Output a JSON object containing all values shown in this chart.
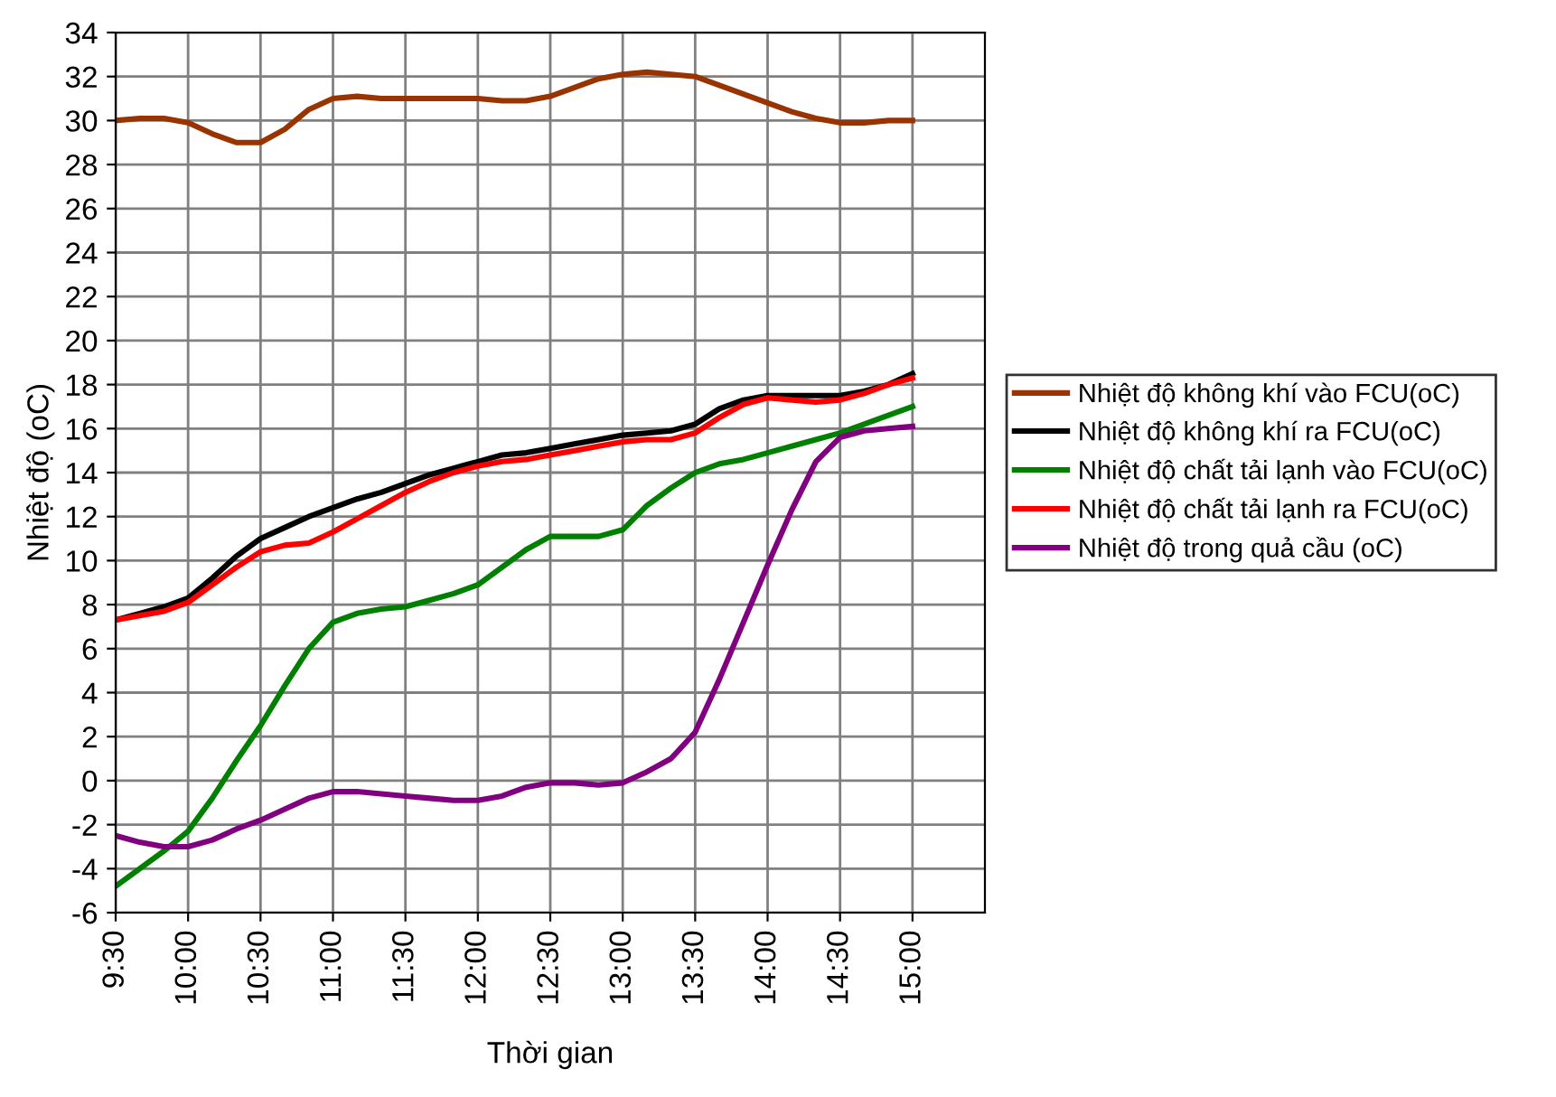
{
  "chart_data": {
    "type": "line",
    "xlabel": "Thời gian",
    "ylabel": "Nhiệt độ (oC)",
    "x": [
      9.5,
      9.6667,
      9.8333,
      10,
      10.1667,
      10.3333,
      10.5,
      10.6667,
      10.8333,
      11,
      11.1667,
      11.3333,
      11.5,
      11.6667,
      11.8333,
      12,
      12.1667,
      12.3333,
      12.5,
      12.6667,
      12.8333,
      13,
      13.1667,
      13.3333,
      13.5,
      13.6667,
      13.8333,
      14,
      14.1667,
      14.3333,
      14.5,
      14.6667,
      14.8333,
      15
    ],
    "series": [
      {
        "name": "Nhiệt độ không khí vào FCU(oC)",
        "color": "#993300",
        "values": [
          30.0,
          30.1,
          30.1,
          29.9,
          29.4,
          29.0,
          29.0,
          29.6,
          30.5,
          31.0,
          31.1,
          31.0,
          31.0,
          31.0,
          31.0,
          31.0,
          30.9,
          30.9,
          31.1,
          31.5,
          31.9,
          32.1,
          32.2,
          32.1,
          32.0,
          31.6,
          31.2,
          30.8,
          30.4,
          30.1,
          29.9,
          29.9,
          30.0,
          30.0
        ]
      },
      {
        "name": "Nhiệt độ không khí ra FCU(oC)",
        "color": "#000000",
        "values": [
          7.3,
          7.6,
          7.9,
          8.3,
          9.2,
          10.2,
          11.0,
          11.5,
          12.0,
          12.4,
          12.8,
          13.1,
          13.5,
          13.9,
          14.2,
          14.5,
          14.8,
          14.9,
          15.1,
          15.3,
          15.5,
          15.7,
          15.8,
          15.9,
          16.2,
          16.9,
          17.3,
          17.5,
          17.5,
          17.5,
          17.5,
          17.7,
          18.0,
          18.5
        ]
      },
      {
        "name": "Nhiệt độ chất tải lạnh vào FCU(oC)",
        "color": "#008000",
        "values": [
          -4.8,
          -4.0,
          -3.2,
          -2.3,
          -0.8,
          0.9,
          2.5,
          4.3,
          6.0,
          7.2,
          7.6,
          7.8,
          7.9,
          8.2,
          8.5,
          8.9,
          9.7,
          10.5,
          11.1,
          11.1,
          11.1,
          11.4,
          12.5,
          13.3,
          14.0,
          14.4,
          14.6,
          14.9,
          15.2,
          15.5,
          15.8,
          16.2,
          16.6,
          17.0
        ]
      },
      {
        "name": "Nhiệt độ chất tải lạnh ra FCU(oC)",
        "color": "#ff0000",
        "values": [
          7.3,
          7.5,
          7.7,
          8.1,
          8.9,
          9.7,
          10.4,
          10.7,
          10.8,
          11.3,
          11.9,
          12.5,
          13.1,
          13.6,
          14.0,
          14.3,
          14.5,
          14.6,
          14.8,
          15.0,
          15.2,
          15.4,
          15.5,
          15.5,
          15.8,
          16.5,
          17.1,
          17.4,
          17.3,
          17.2,
          17.3,
          17.6,
          18.0,
          18.3
        ]
      },
      {
        "name": "Nhiệt độ trong quả cầu (oC)",
        "color": "#800080",
        "values": [
          -2.5,
          -2.8,
          -3.0,
          -3.0,
          -2.7,
          -2.2,
          -1.8,
          -1.3,
          -0.8,
          -0.5,
          -0.5,
          -0.6,
          -0.7,
          -0.8,
          -0.9,
          -0.9,
          -0.7,
          -0.3,
          -0.1,
          -0.1,
          -0.2,
          -0.1,
          0.4,
          1.0,
          2.2,
          4.6,
          7.2,
          9.8,
          12.3,
          14.5,
          15.6,
          15.9,
          16.0,
          16.1
        ]
      }
    ],
    "xlim": [
      9.5,
      15.5
    ],
    "xticks": [
      {
        "value": 9.5,
        "label": "9:30"
      },
      {
        "value": 10,
        "label": "10:00"
      },
      {
        "value": 10.5,
        "label": "10:30"
      },
      {
        "value": 11,
        "label": "11:00"
      },
      {
        "value": 11.5,
        "label": "11:30"
      },
      {
        "value": 12,
        "label": "12:00"
      },
      {
        "value": 12.5,
        "label": "12:30"
      },
      {
        "value": 13,
        "label": "13:00"
      },
      {
        "value": 13.5,
        "label": "13:30"
      },
      {
        "value": 14,
        "label": "14:00"
      },
      {
        "value": 14.5,
        "label": "14:30"
      },
      {
        "value": 15,
        "label": "15:00"
      }
    ],
    "ylim": [
      -6,
      34
    ],
    "yticks": [
      -6,
      -4,
      -2,
      0,
      2,
      4,
      6,
      8,
      10,
      12,
      14,
      16,
      18,
      20,
      22,
      24,
      26,
      28,
      30,
      32,
      34
    ],
    "grid": true,
    "legend": "right",
    "marker": "none",
    "line_style": "solid"
  }
}
